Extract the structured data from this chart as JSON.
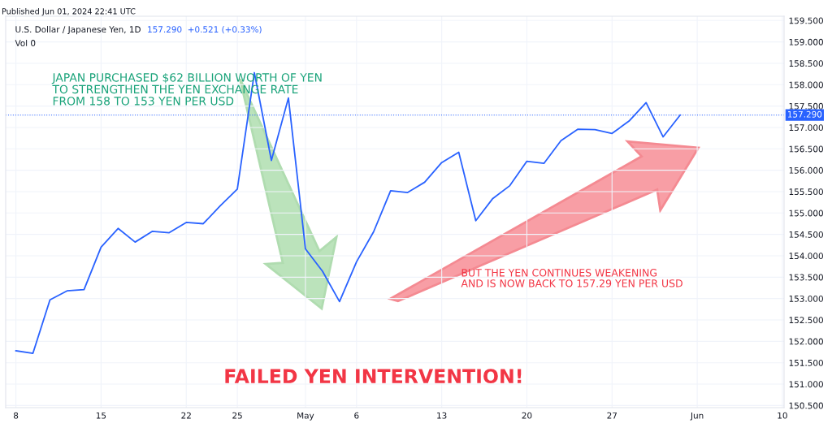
{
  "chart_data": {
    "type": "line",
    "title": "U.S. Dollar / Japanese Yen, 1D",
    "categories": [
      "8",
      null,
      null,
      null,
      null,
      "15",
      null,
      null,
      null,
      null,
      "22",
      null,
      null,
      "25",
      null,
      null,
      null,
      "May",
      null,
      null,
      "6",
      null,
      null,
      null,
      null,
      "13",
      null,
      null,
      null,
      null,
      "20",
      null,
      null,
      null,
      null,
      "27",
      null,
      null,
      null,
      null,
      "Jun",
      null,
      null,
      null,
      null,
      "10"
    ],
    "series": [
      {
        "color": "#2962ff",
        "values": [
          151.78,
          151.72,
          152.97,
          153.18,
          153.21,
          154.2,
          154.64,
          154.32,
          154.57,
          154.54,
          154.78,
          154.75,
          155.17,
          155.56,
          158.28,
          156.23,
          157.69,
          154.16,
          153.64,
          152.93,
          153.86,
          154.56,
          155.52,
          155.48,
          155.72,
          156.18,
          156.42,
          154.82,
          155.34,
          155.64,
          156.21,
          156.16,
          156.69,
          156.96,
          156.95,
          156.86,
          157.15,
          157.58,
          156.78,
          157.29,
          null,
          null,
          null,
          null,
          null,
          null
        ]
      }
    ],
    "ylim": [
      150.45,
      159.6
    ],
    "yticks": [
      {
        "value": 150.5,
        "label": "150.500"
      },
      {
        "value": 151,
        "label": "151.000"
      },
      {
        "value": 151.5,
        "label": "151.500"
      },
      {
        "value": 152,
        "label": "152.000"
      },
      {
        "value": 152.5,
        "label": "152.500"
      },
      {
        "value": 153,
        "label": "153.000"
      },
      {
        "value": 153.5,
        "label": "153.500"
      },
      {
        "value": 154,
        "label": "154.000"
      },
      {
        "value": 154.5,
        "label": "154.500"
      },
      {
        "value": 155,
        "label": "155.000"
      },
      {
        "value": 155.5,
        "label": "155.500"
      },
      {
        "value": 156,
        "label": "156.000"
      },
      {
        "value": 156.5,
        "label": "156.500"
      },
      {
        "value": 157,
        "label": "157.000"
      },
      {
        "value": 157.5,
        "label": "157.500"
      },
      {
        "value": 158,
        "label": "158.000"
      },
      {
        "value": 158.5,
        "label": "158.500"
      },
      {
        "value": 159,
        "label": "159.000"
      },
      {
        "value": 159.5,
        "label": "159.500"
      }
    ],
    "ref_lines": [
      {
        "axis": "y",
        "value": 157.29,
        "label": "157.290",
        "color": "#2962ff",
        "line_style": "dotted"
      }
    ],
    "grid": true,
    "marker": "none",
    "line_style": "solid",
    "annotations": [
      "Published Jun 01, 2024 22:41 UTC",
      "157.290  +0.521 (+0.33%)",
      "Vol 0",
      "JAPAN PURCHASED $62 BILLION WORTH OF YEN\nTO STRENGTHEN THE YEN EXCHANGE RATE\nFROM 158 TO 153 YEN PER USD",
      "BUT THE YEN CONTINUES WEAKENING\nAND IS NOW BACK TO 157.29 YEN PER USD",
      "FAILED YEN INTERVENTION!"
    ]
  }
}
